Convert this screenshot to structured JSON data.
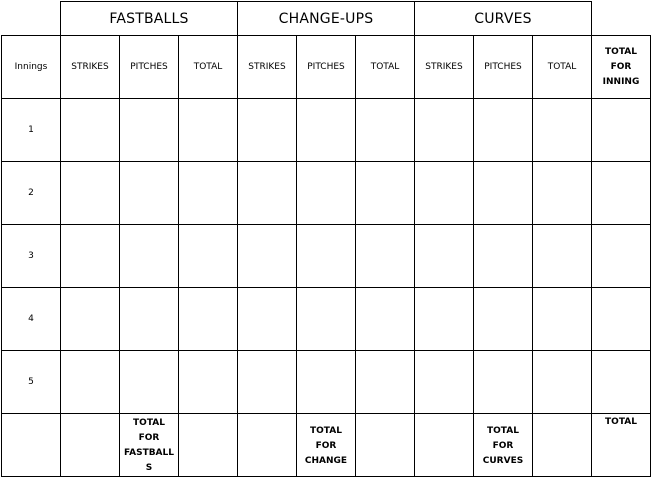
{
  "groups": {
    "fastballs": "FASTBALLS",
    "changeups": "CHANGE-UPS",
    "curves": "CURVES"
  },
  "header": {
    "innings": "Innings",
    "fb_strikes": "STRIKES",
    "fb_pitches": "PITCHES",
    "fb_total": "TOTAL",
    "cu_strikes": "STRIKES",
    "cu_pitches": "PITCHES",
    "cu_total": "TOTAL",
    "cv_strikes": "STRIKES",
    "cv_pitches": "PITCHES",
    "cv_total": "TOTAL",
    "inning_total": "TOTAL\nFOR\nINNING"
  },
  "rows": [
    "1",
    "2",
    "3",
    "4",
    "5"
  ],
  "footer": {
    "fastballs": "TOTAL\nFOR\nFASTBALL\nS",
    "change": "TOTAL\nFOR\nCHANGE",
    "curves": "TOTAL\nFOR\nCURVES",
    "total": "TOTAL"
  }
}
